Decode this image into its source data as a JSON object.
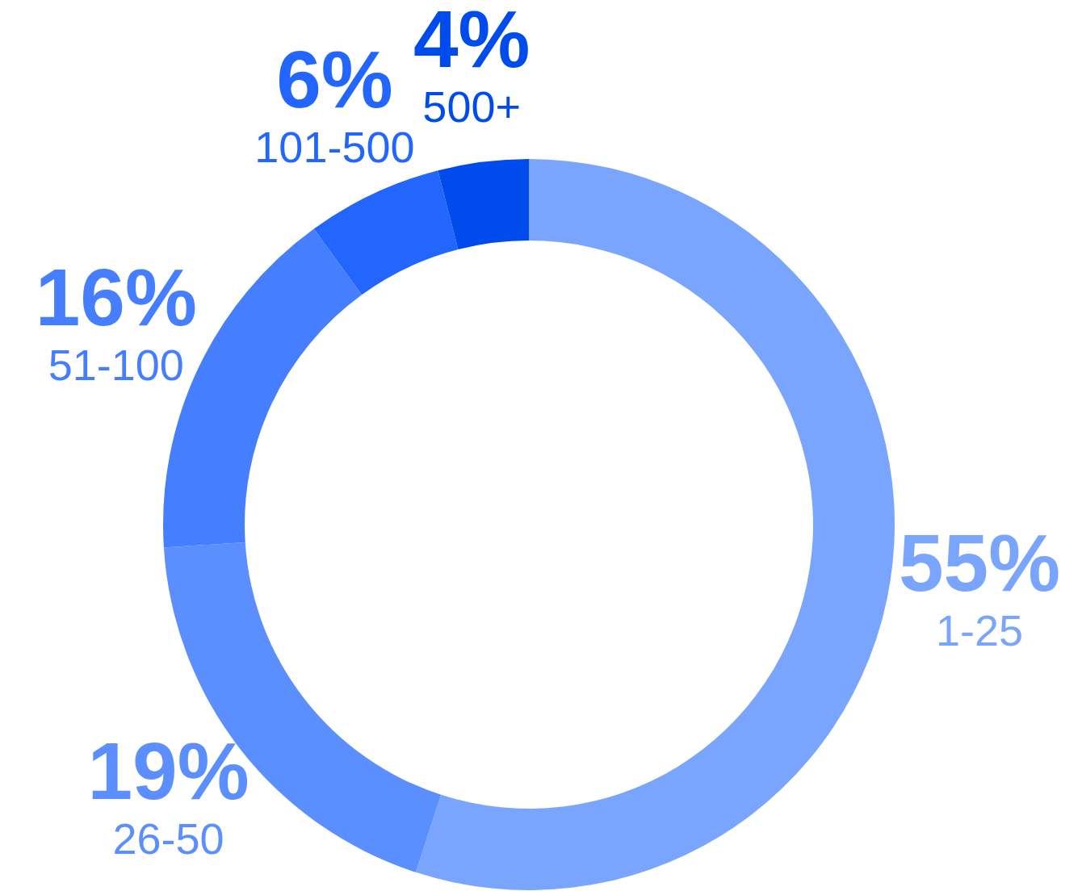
{
  "chart_data": {
    "type": "donut",
    "categories": [
      "1-25",
      "26-50",
      "51-100",
      "101-500",
      "500+"
    ],
    "values": [
      55,
      19,
      16,
      6,
      4
    ],
    "colors": [
      "#7aa5ff",
      "#5b8fff",
      "#457fff",
      "#2266ff",
      "#004bee"
    ],
    "value_labels": [
      "55%",
      "19%",
      "16%",
      "6%",
      "4%"
    ]
  }
}
